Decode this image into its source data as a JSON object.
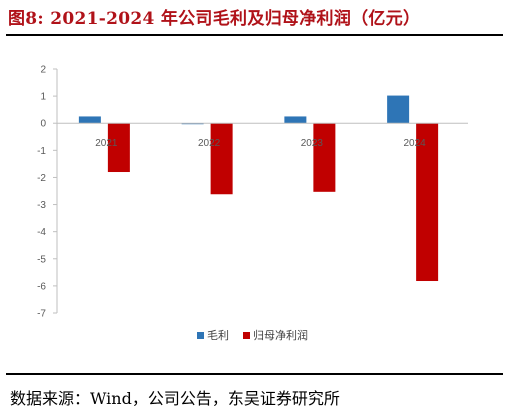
{
  "figure": {
    "title": "图8:  2021-2024 年公司毛利及归母净利润（亿元）",
    "source": "数据来源：Wind，公司公告，东吴证券研究所"
  },
  "chart_data": {
    "type": "bar",
    "title": "",
    "xlabel": "",
    "ylabel": "",
    "categories": [
      "2021",
      "2022",
      "2023",
      "2024"
    ],
    "series": [
      {
        "name": "毛利",
        "color": "#2e75b6",
        "values": [
          0.25,
          -0.02,
          0.25,
          1.02
        ]
      },
      {
        "name": "归母净利润",
        "color": "#c00000",
        "values": [
          -1.8,
          -2.62,
          -2.53,
          -5.82
        ]
      }
    ],
    "ylim": [
      -7,
      2
    ],
    "yticks": [
      "2",
      "1",
      "0",
      "-1",
      "-2",
      "-3",
      "-4",
      "-5",
      "-6",
      "-7"
    ],
    "grid": false,
    "legend": "bottom-center"
  }
}
